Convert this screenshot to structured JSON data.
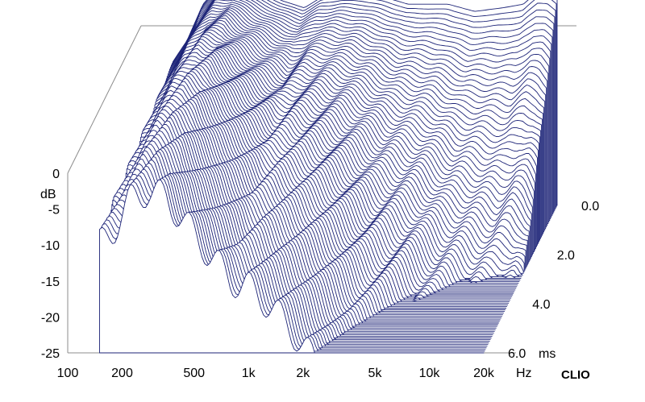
{
  "chart_data": {
    "type": "waterfall",
    "title": "",
    "brand": "CLIO",
    "x_axis": {
      "scale": "log",
      "range_hz": [
        100,
        20000
      ],
      "unit_label": "Hz",
      "ticks": [
        {
          "value": 100,
          "label": "100"
        },
        {
          "value": 200,
          "label": "200"
        },
        {
          "value": 500,
          "label": "500"
        },
        {
          "value": 1000,
          "label": "1k"
        },
        {
          "value": 2000,
          "label": "2k"
        },
        {
          "value": 5000,
          "label": "5k"
        },
        {
          "value": 10000,
          "label": "10k"
        },
        {
          "value": 20000,
          "label": "20k"
        }
      ]
    },
    "y_axis": {
      "unit_label": "dB",
      "range_db": [
        -25,
        0
      ],
      "ticks": [
        {
          "value": 0,
          "label": "0"
        },
        {
          "value": -5,
          "label": "-5"
        },
        {
          "value": -10,
          "label": "-10"
        },
        {
          "value": -15,
          "label": "-15"
        },
        {
          "value": -20,
          "label": "-20"
        },
        {
          "value": -25,
          "label": "-25"
        }
      ]
    },
    "z_axis": {
      "unit_label": "ms",
      "range_ms": [
        0,
        6
      ],
      "ticks": [
        {
          "value": 0,
          "label": "0.0"
        },
        {
          "value": 2,
          "label": "2.0"
        },
        {
          "value": 4,
          "label": "4.0"
        },
        {
          "value": 6,
          "label": "6.0"
        }
      ]
    },
    "slice_count": 90,
    "initial_response_db": {
      "freq_hz": [
        150,
        180,
        220,
        280,
        350,
        450,
        600,
        800,
        1000,
        1300,
        1700,
        2200,
        3000,
        4000,
        5000,
        7000,
        10000,
        13000,
        16000,
        18000,
        20000
      ],
      "level_db": [
        -5,
        -2,
        3,
        6,
        6.5,
        5,
        3.5,
        2.5,
        4,
        4.5,
        4.5,
        4,
        3,
        3,
        3,
        2,
        2.5,
        3,
        5,
        5,
        4
      ]
    },
    "decay_floor_db": -25,
    "colors": {
      "trace": "#1c2377",
      "floor": "#1c2377",
      "axes": "#8c8c8c",
      "text": "#000000",
      "background": "#ffffff"
    }
  }
}
